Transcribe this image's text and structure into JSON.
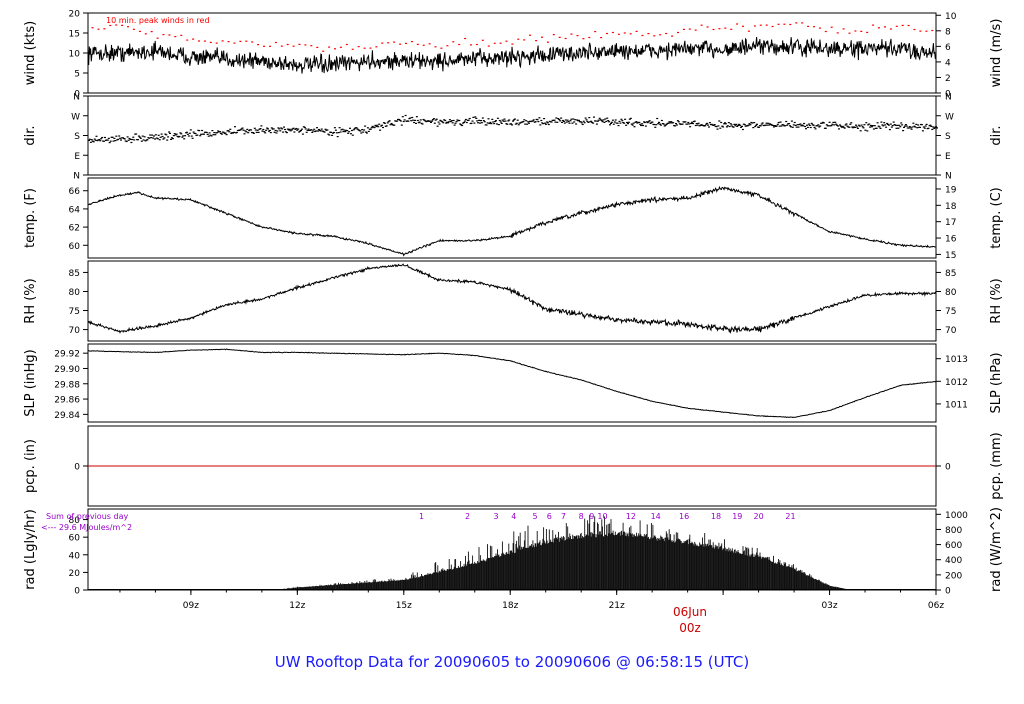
{
  "page_title": "UW Rooftop Data for 20090605  to  20090606 @ 06:58:15  (UTC)",
  "colors": {
    "title": "#1a1aff",
    "peak": "#ff0000",
    "pcp_line": "#cc0000",
    "annotation": "#9900cc",
    "trace": "#000000"
  },
  "time_axis": {
    "range_hours": [
      6.1,
      30.0
    ],
    "ticks": [
      {
        "hour": 9,
        "label": "09z"
      },
      {
        "hour": 12,
        "label": "12z"
      },
      {
        "hour": 15,
        "label": "15z"
      },
      {
        "hour": 18,
        "label": "18z"
      },
      {
        "hour": 21,
        "label": "21z"
      },
      {
        "hour": 24,
        "label": "06Jun"
      },
      {
        "hour": 27,
        "label": "03z"
      },
      {
        "hour": 30,
        "label": "06z"
      }
    ],
    "date_label": "06Jun",
    "date_sublabel": "00z"
  },
  "chart_data": [
    {
      "id": "wind",
      "type": "line",
      "ylabel": "wind (kts)",
      "ylabel_right": "wind (m/s)",
      "ylim": [
        0,
        20
      ],
      "yticks": [
        0,
        5,
        10,
        15,
        20
      ],
      "right_ylim": [
        0,
        10.29
      ],
      "right_yticks": [
        0,
        2,
        4,
        6,
        8,
        10
      ],
      "annotation": "10 min. peak winds in red",
      "x_hours": [
        6.1,
        7,
        8,
        9,
        10,
        11,
        12,
        13,
        14,
        15,
        16,
        17,
        18,
        19,
        20,
        21,
        22,
        23,
        24,
        25,
        26,
        27,
        28,
        29,
        30
      ],
      "values": [
        10,
        10,
        10.5,
        9,
        8.5,
        8,
        7,
        7,
        8,
        8,
        8,
        8.5,
        9,
        9.5,
        10,
        10.5,
        10.5,
        11,
        11,
        11.5,
        11.5,
        11,
        11,
        11,
        10
      ],
      "peak_values": [
        16,
        17,
        15,
        14,
        13,
        12,
        12,
        11,
        12,
        13,
        12,
        13,
        13,
        14,
        14,
        15,
        15,
        16,
        16,
        17,
        17,
        16,
        16,
        17,
        15
      ]
    },
    {
      "id": "dir",
      "type": "scatter",
      "ylabel": "dir.",
      "ylabel_right": "dir.",
      "ylim": [
        0,
        360
      ],
      "ytick_labels": [
        "N",
        "E",
        "S",
        "W",
        "N"
      ],
      "right_ytick_labels": [
        "N",
        "E",
        "S",
        "W",
        "N"
      ],
      "x_hours": [
        6.1,
        8,
        10,
        12,
        13,
        14,
        15,
        16,
        18,
        20,
        22,
        24,
        26,
        28,
        30
      ],
      "values": [
        160,
        175,
        200,
        210,
        200,
        210,
        255,
        245,
        245,
        250,
        240,
        230,
        230,
        225,
        225
      ]
    },
    {
      "id": "temp",
      "type": "line",
      "ylabel": "temp. (F)",
      "ylabel_right": "temp. (C)",
      "ylim": [
        58.6,
        67.4
      ],
      "yticks": [
        60,
        62,
        64,
        66
      ],
      "right_ylim": [
        14.78,
        19.67
      ],
      "right_yticks": [
        15,
        16,
        17,
        18,
        19
      ],
      "x_hours": [
        6.1,
        7,
        7.5,
        8,
        9,
        10,
        11,
        12,
        13,
        14,
        15,
        16,
        17,
        18,
        19,
        20,
        21,
        22,
        23,
        24,
        25,
        26,
        27,
        28,
        29,
        30
      ],
      "values": [
        64.5,
        65.5,
        65.8,
        65.2,
        65.0,
        63.5,
        62.0,
        61.3,
        61.0,
        60.2,
        59.0,
        60.5,
        60.5,
        61.0,
        62.5,
        63.5,
        64.5,
        65.0,
        65.2,
        66.3,
        65.5,
        63.5,
        61.5,
        60.7,
        60.0,
        59.8
      ]
    },
    {
      "id": "rh",
      "type": "line",
      "ylabel": "RH (%)",
      "ylabel_right": "RH (%)",
      "ylim": [
        67,
        88
      ],
      "yticks": [
        70,
        75,
        80,
        85
      ],
      "right_yticks": [
        70,
        75,
        80,
        85
      ],
      "x_hours": [
        6.1,
        7,
        8,
        9,
        10,
        11,
        12,
        13,
        14,
        15,
        16,
        17,
        18,
        19,
        20,
        21,
        22,
        23,
        24,
        25,
        26,
        27,
        28,
        29,
        30
      ],
      "values": [
        72,
        69.5,
        71,
        73,
        76.5,
        78,
        81,
        83.5,
        86,
        87,
        83,
        82.5,
        80.5,
        75.5,
        74,
        72.5,
        72,
        71.5,
        70,
        70,
        73,
        76,
        79,
        79.5,
        79.5
      ]
    },
    {
      "id": "slp",
      "type": "line",
      "ylabel": "SLP (inHg)",
      "ylabel_right": "SLP (hPa)",
      "ylim": [
        29.83,
        29.932
      ],
      "yticks": [
        29.84,
        29.86,
        29.88,
        29.9,
        29.92
      ],
      "right_ylim": [
        1010.2,
        1013.65
      ],
      "right_yticks": [
        1011,
        1012,
        1013
      ],
      "x_hours": [
        6.1,
        7,
        8,
        9,
        10,
        11,
        12,
        13,
        14,
        15,
        16,
        17,
        18,
        19,
        20,
        21,
        22,
        23,
        24,
        25,
        26,
        27,
        28,
        29,
        30
      ],
      "values": [
        29.923,
        29.922,
        29.921,
        29.924,
        29.925,
        29.921,
        29.921,
        29.92,
        29.919,
        29.918,
        29.92,
        29.917,
        29.91,
        29.896,
        29.885,
        29.87,
        29.857,
        29.848,
        29.843,
        29.838,
        29.836,
        29.845,
        29.862,
        29.878,
        29.883
      ]
    },
    {
      "id": "pcp",
      "type": "line",
      "ylabel": "pcp. (in)",
      "ylabel_right": "pcp. (mm)",
      "ylim": [
        -1,
        1
      ],
      "yticks": [
        0
      ],
      "right_yticks": [
        0
      ],
      "x_hours": [
        6.1,
        30
      ],
      "values": [
        0,
        0
      ]
    },
    {
      "id": "rad",
      "type": "area",
      "ylabel": "rad (Lgly/hr)",
      "ylabel_right": "rad (W/m^2)",
      "ylim": [
        0,
        92
      ],
      "yticks": [
        0,
        20,
        40,
        60,
        80
      ],
      "right_ylim": [
        0,
        1070
      ],
      "right_yticks": [
        0,
        200,
        400,
        600,
        800,
        1000
      ],
      "annotations": [
        "Sum of previous day",
        "<--- 29.6 MJoules/m^2"
      ],
      "hour_markers": [
        {
          "hour": 15.5,
          "label": "1"
        },
        {
          "hour": 16.8,
          "label": "2"
        },
        {
          "hour": 17.6,
          "label": "3"
        },
        {
          "hour": 18.1,
          "label": "4"
        },
        {
          "hour": 18.7,
          "label": "5"
        },
        {
          "hour": 19.1,
          "label": "6"
        },
        {
          "hour": 19.5,
          "label": "7"
        },
        {
          "hour": 20.0,
          "label": "8"
        },
        {
          "hour": 20.3,
          "label": "9"
        },
        {
          "hour": 20.6,
          "label": "10"
        },
        {
          "hour": 21.4,
          "label": "12"
        },
        {
          "hour": 22.1,
          "label": "14"
        },
        {
          "hour": 22.9,
          "label": "16"
        },
        {
          "hour": 23.8,
          "label": "18"
        },
        {
          "hour": 24.4,
          "label": "19"
        },
        {
          "hour": 25.0,
          "label": "20"
        },
        {
          "hour": 25.9,
          "label": "21"
        }
      ],
      "x_hours": [
        6.1,
        11,
        11.5,
        12,
        13,
        14,
        15,
        15.5,
        16,
        17,
        18,
        19,
        20,
        21,
        22,
        23,
        24,
        25,
        26,
        26.5,
        27,
        27.5,
        28,
        30
      ],
      "values": [
        0,
        0,
        0.5,
        3,
        6,
        9,
        12,
        16,
        22,
        32,
        45,
        58,
        65,
        68,
        63,
        57,
        50,
        40,
        25,
        15,
        5,
        1,
        0,
        0
      ],
      "peak_values": [
        0,
        0,
        1,
        4,
        8,
        12,
        16,
        25,
        35,
        50,
        70,
        80,
        90,
        88,
        82,
        72,
        62,
        50,
        32,
        18,
        6,
        1,
        0,
        0
      ]
    }
  ]
}
